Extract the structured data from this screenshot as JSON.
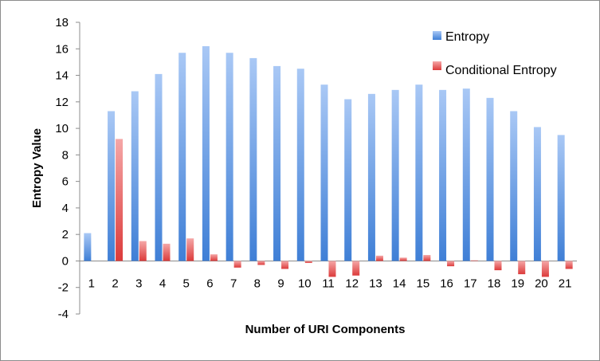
{
  "chart_data": {
    "type": "bar",
    "xlabel": "Number of URI Components",
    "ylabel": "Entropy Value",
    "ylim": [
      -4,
      18
    ],
    "yticks": [
      -4,
      -2,
      0,
      2,
      4,
      6,
      8,
      10,
      12,
      14,
      16,
      18
    ],
    "grid": false,
    "legend_position": "top-right",
    "categories": [
      "1",
      "2",
      "3",
      "4",
      "5",
      "6",
      "7",
      "8",
      "9",
      "10",
      "11",
      "12",
      "13",
      "14",
      "15",
      "16",
      "17",
      "18",
      "19",
      "20",
      "21"
    ],
    "series": [
      {
        "name": "Entropy",
        "color": "#4a86d8",
        "values": [
          2.1,
          11.3,
          12.8,
          14.1,
          15.7,
          16.2,
          15.7,
          15.3,
          14.7,
          14.5,
          13.3,
          12.2,
          12.6,
          12.9,
          13.3,
          12.9,
          13.0,
          12.3,
          11.3,
          10.1,
          9.5
        ]
      },
      {
        "name": "Conditional Entropy",
        "color": "#e14a4a",
        "values": [
          0.0,
          9.2,
          1.5,
          1.3,
          1.7,
          0.5,
          -0.5,
          -0.3,
          -0.6,
          -0.15,
          -1.2,
          -1.1,
          0.4,
          0.25,
          0.45,
          -0.4,
          0.05,
          -0.7,
          -1.0,
          -1.2,
          -0.6
        ]
      }
    ]
  }
}
